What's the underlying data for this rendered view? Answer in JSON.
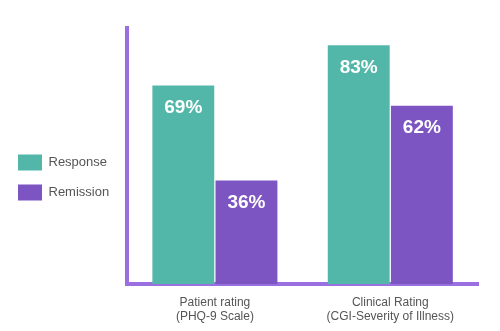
{
  "chart_data": {
    "type": "bar",
    "categories": [
      [
        "Patient rating",
        "(PHQ-9 Scale)"
      ],
      [
        "Clinical Rating",
        "(CGI-Severity of Illness)"
      ]
    ],
    "series": [
      {
        "name": "Response",
        "color": "#52b7a8",
        "values": [
          69,
          83
        ],
        "value_labels": [
          "69%",
          "83%"
        ]
      },
      {
        "name": "Remission",
        "color": "#7c55c3",
        "values": [
          36,
          62
        ],
        "value_labels": [
          "36%",
          "62%"
        ]
      }
    ],
    "ylim": [
      0,
      89
    ],
    "grid": false,
    "legend": "left",
    "data_labels": true,
    "tick_labels": "x"
  }
}
